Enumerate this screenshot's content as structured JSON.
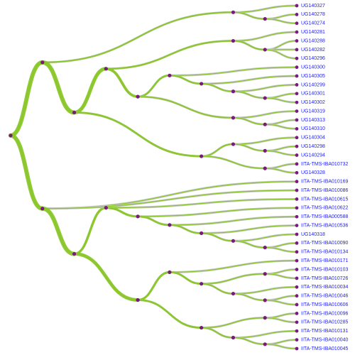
{
  "tree": [
    [
      [
        "UG140327",
        [
          "UG140278",
          "UG140274"
        ]
      ],
      [
        [
          [
            "UG140281",
            [
              "UG140288",
              "UG140282",
              "UG140296"
            ]
          ],
          [
            [
              "UG140300",
              [
                "UG140305",
                [
                  "UG140299",
                  [
                    "UG140301",
                    "UG140302"
                  ]
                ]
              ]
            ],
            [
              "UG140319",
              [
                "UG140313",
                "UG140310"
              ]
            ]
          ]
        ],
        [
          [
            "UG140304",
            [
              "UG140298",
              "UG140294"
            ]
          ],
          [
            "IITA-TMS-IBA010732",
            "UG140328"
          ]
        ]
      ]
    ],
    [
      "IITA-TMS-IBA010169",
      "IITA-TMS-IBA010086",
      [
        [
          "IITA-TMS-IBA010615",
          [
            "IITA-TMS-IBA010622",
            [
              "IITA-TMS-IBA000588",
              [
                "IITA-TMS-IBA010536",
                [
                  "UG140318",
                  [
                    "IITA-TMS-IBA010090",
                    "IITA-TMS-IBA010134"
                  ]
                ]
              ]
            ]
          ]
        ],
        [
          [
            "IITA-TMS-IBA010171",
            [
              [
                "IITA-TMS-IBA010103",
                "IITA-TMS-IBA010726"
              ],
              [
                "IITA-TMS-IBA010034",
                [
                  "IITA-TMS-IBA010046",
                  "IITA-TMS-IBA010606"
                ]
              ]
            ]
          ],
          [
            [
              "IITA-TMS-IBA010096",
              "IITA-TMS-IBA010285"
            ],
            [
              "IITA-TMS-IBA010131",
              [
                "IITA-TMS-IBA010040",
                "IITA-TMS-IBA010045"
              ]
            ]
          ]
        ]
      ]
    ]
  ]
}
